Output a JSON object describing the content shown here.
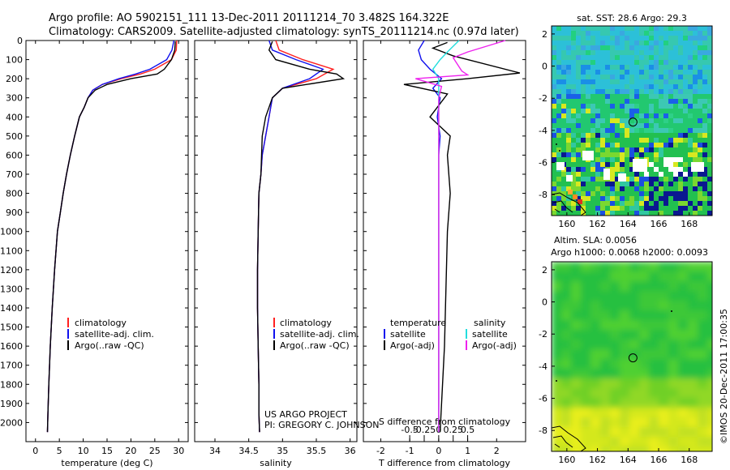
{
  "header": {
    "line1": "Argo profile: AO 5902151_111 13-Dec-2011 20111214_70 3.482S 164.322E",
    "line2": "Climatology: CARS2009. Satellite-adjusted climatology: synTS_20111214.nc (0.97d later)"
  },
  "colors": {
    "climatology": "#ff2020",
    "satellite": "#1010ee",
    "argo": "#000000",
    "satellite_s": "#22dddd",
    "argo_s": "#ee22ee"
  },
  "legend_left": {
    "climatology": "climatology",
    "satellite": "satellite-adj. clim.",
    "argo": "Argo(..raw -QC)"
  },
  "legend_diff": {
    "temperature": "temperature",
    "salinity": "salinity",
    "satellite_t": "satellite",
    "argo_t": "Argo(-adj)",
    "satellite_s": "satellite",
    "argo_s": "Argo(-adj)"
  },
  "project": {
    "line1": "US ARGO PROJECT",
    "line2": "PI: GREGORY C. JOHNSON"
  },
  "sst_map": {
    "title": "sat. SST: 28.6 Argo: 29.3"
  },
  "sla_map": {
    "title1": "Altim. SLA: 0.0056",
    "title2": "Argo h1000: 0.0068 h2000: 0.0093"
  },
  "credit": "©IMOS 20-Dec-2011 17:00:35",
  "chart_data": [
    {
      "type": "line",
      "name": "temperature profile",
      "xlabel": "temperature (deg C)",
      "xlim": [
        -2,
        32
      ],
      "xticks": [
        0,
        5,
        10,
        15,
        20,
        25,
        30
      ],
      "ylim": [
        0,
        2100
      ],
      "yticks": [
        0,
        100,
        200,
        300,
        400,
        500,
        600,
        700,
        800,
        900,
        1000,
        1100,
        1200,
        1300,
        1400,
        1500,
        1600,
        1700,
        1800,
        1900,
        2000
      ],
      "series": [
        {
          "name": "climatology",
          "color_key": "climatology",
          "x": [
            29.6,
            29.5,
            28.5,
            25,
            22,
            18,
            14,
            12,
            11,
            10.2,
            9.2,
            8.2,
            7.3,
            6.5,
            5.8,
            5.2,
            4.6,
            4.0,
            3.5,
            3.1,
            2.8,
            2.6,
            2.5
          ],
          "y": [
            0,
            50,
            100,
            150,
            175,
            200,
            230,
            260,
            300,
            350,
            400,
            500,
            600,
            700,
            800,
            900,
            1000,
            1200,
            1400,
            1600,
            1800,
            1950,
            2050
          ]
        },
        {
          "name": "satellite-adj. clim.",
          "color_key": "satellite",
          "x": [
            29.0,
            28.6,
            27.5,
            24,
            21,
            17.5,
            14,
            12,
            11,
            10.2,
            9.2,
            8.2,
            7.3,
            6.5,
            5.8,
            5.2,
            4.6,
            4.0,
            3.5,
            3.1,
            2.8,
            2.6,
            2.5
          ],
          "y": [
            0,
            50,
            100,
            150,
            175,
            200,
            230,
            260,
            300,
            350,
            400,
            500,
            600,
            700,
            800,
            900,
            1000,
            1200,
            1400,
            1600,
            1800,
            1950,
            2050
          ]
        },
        {
          "name": "Argo(..raw -QC)",
          "color_key": "argo",
          "x": [
            29.3,
            29.2,
            28.5,
            27.0,
            25.5,
            20,
            15,
            12.5,
            11,
            10.2,
            9.2,
            8.2,
            7.3,
            6.5,
            5.8,
            5.2,
            4.6,
            4.0,
            3.5,
            3.1,
            2.8,
            2.6,
            2.5
          ],
          "y": [
            5,
            50,
            100,
            150,
            175,
            200,
            230,
            260,
            300,
            350,
            400,
            500,
            600,
            700,
            800,
            900,
            1000,
            1200,
            1400,
            1600,
            1800,
            1950,
            2050
          ]
        }
      ]
    },
    {
      "type": "line",
      "name": "salinity profile",
      "xlabel": "salinity",
      "xlim": [
        33.7,
        36.1
      ],
      "xticks": [
        34,
        34.5,
        35,
        35.5,
        36
      ],
      "ylim": [
        0,
        2100
      ],
      "series": [
        {
          "name": "climatology",
          "color_key": "climatology",
          "x": [
            34.9,
            34.95,
            35.3,
            35.75,
            35.5,
            35.0,
            34.85,
            34.8,
            34.75,
            34.7,
            34.68,
            34.65,
            34.64,
            34.63,
            34.63,
            34.64,
            34.65,
            34.65,
            34.66
          ],
          "y": [
            0,
            50,
            100,
            150,
            200,
            250,
            300,
            400,
            500,
            600,
            700,
            800,
            1000,
            1200,
            1400,
            1600,
            1800,
            1950,
            2050
          ]
        },
        {
          "name": "satellite-adj. clim.",
          "color_key": "satellite",
          "x": [
            34.8,
            34.85,
            35.2,
            35.6,
            35.4,
            35.0,
            34.85,
            34.8,
            34.75,
            34.7,
            34.68,
            34.65,
            34.64,
            34.63,
            34.63,
            34.64,
            34.65,
            34.65,
            34.66
          ],
          "y": [
            0,
            50,
            100,
            150,
            200,
            250,
            300,
            400,
            500,
            600,
            700,
            800,
            1000,
            1200,
            1400,
            1600,
            1800,
            1950,
            2050
          ]
        },
        {
          "name": "Argo(..raw -QC)",
          "color_key": "argo",
          "x": [
            34.85,
            34.8,
            34.9,
            35.4,
            35.8,
            35.9,
            35.0,
            34.85,
            34.75,
            34.7,
            34.68,
            34.65,
            34.64,
            34.63,
            34.63,
            34.64,
            34.65,
            34.65,
            34.66
          ],
          "y": [
            5,
            50,
            100,
            150,
            175,
            200,
            250,
            300,
            400,
            500,
            700,
            800,
            1000,
            1200,
            1400,
            1600,
            1800,
            1950,
            2050
          ]
        }
      ]
    },
    {
      "type": "line",
      "name": "difference from climatology",
      "xlabel": "T difference from climatology",
      "xlabel_top": "S difference from climatology",
      "xlim": [
        -2.6,
        3.0
      ],
      "xticks": [
        -2,
        -1,
        0,
        1,
        2
      ],
      "sticks": [
        -0.5,
        -0.25,
        0,
        0.25,
        0.5
      ],
      "ylim": [
        0,
        2100
      ],
      "series": [
        {
          "name": "T satellite",
          "color_key": "satellite",
          "x": [
            -0.5,
            -0.7,
            -0.6,
            -0.3,
            0.1,
            -0.2,
            0.05,
            -0.05,
            0.05,
            0,
            0,
            0,
            0,
            0,
            0,
            0
          ],
          "y": [
            0,
            50,
            100,
            150,
            200,
            250,
            300,
            400,
            500,
            600,
            800,
            1000,
            1300,
            1600,
            1900,
            2050
          ]
        },
        {
          "name": "T Argo(-adj)",
          "color_key": "argo",
          "x": [
            0.3,
            -0.2,
            0.5,
            2.8,
            1.0,
            -1.2,
            0.3,
            -0.3,
            0.4,
            0.3,
            0.4,
            0.3,
            0.25,
            0.2,
            0.1,
            0.05
          ],
          "y": [
            10,
            40,
            80,
            170,
            200,
            230,
            280,
            400,
            500,
            600,
            800,
            1000,
            1300,
            1600,
            1900,
            2050
          ]
        },
        {
          "name": "S satellite",
          "color_key": "satellite_s",
          "x": [
            0.7,
            0.3,
            0.05,
            -0.2,
            0,
            0,
            0,
            0,
            0,
            0,
            0,
            0
          ],
          "y": [
            0,
            60,
            100,
            150,
            200,
            300,
            400,
            600,
            900,
            1300,
            1700,
            2050
          ]
        },
        {
          "name": "S Argo(-adj)",
          "color_key": "argo_s",
          "x": [
            2.3,
            1.0,
            0.5,
            0.8,
            1.0,
            -0.8,
            0.1,
            0,
            0,
            0,
            0
          ],
          "y": [
            0,
            60,
            90,
            160,
            180,
            200,
            240,
            300,
            600,
            1200,
            2050
          ]
        }
      ]
    },
    {
      "type": "heatmap",
      "name": "SST map",
      "title": "sat. SST: 28.6 Argo: 29.3",
      "xlim": [
        159,
        169.5
      ],
      "ylim": [
        -9.3,
        2.5
      ],
      "xticks": [
        160,
        162,
        164,
        166,
        168
      ],
      "yticks": [
        2,
        0,
        -2,
        -4,
        -6,
        -8
      ],
      "marker": {
        "lon": 164.322,
        "lat": -3.482
      }
    },
    {
      "type": "heatmap",
      "name": "SLA map",
      "title": "Altim. SLA: 0.0056",
      "xlim": [
        159,
        169.5
      ],
      "ylim": [
        -9.3,
        2.5
      ],
      "xticks": [
        160,
        162,
        164,
        166,
        168
      ],
      "yticks": [
        2,
        0,
        -2,
        -4,
        -6,
        -8
      ],
      "marker": {
        "lon": 164.322,
        "lat": -3.482
      }
    }
  ]
}
